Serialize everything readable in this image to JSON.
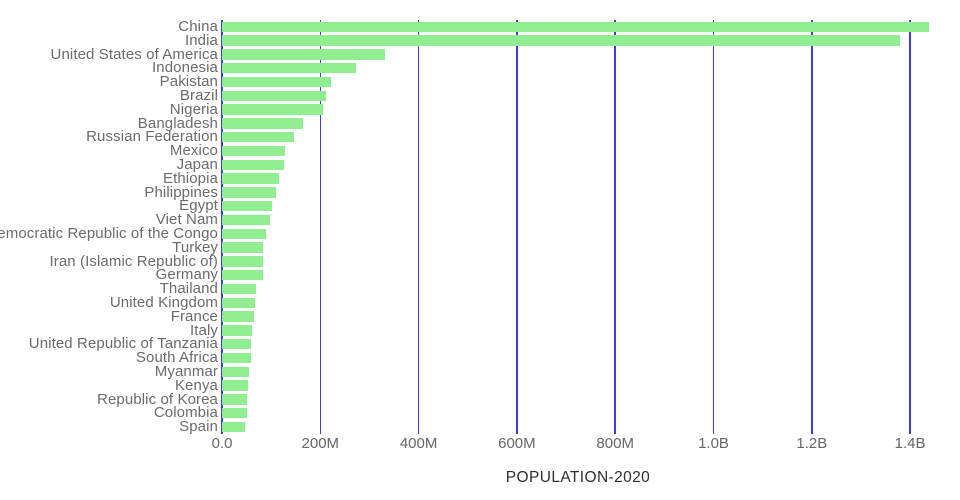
{
  "chart_data": {
    "type": "bar",
    "orientation": "horizontal",
    "xlabel": "POPULATION-2020",
    "categories": [
      "China",
      "India",
      "United States of America",
      "Indonesia",
      "Pakistan",
      "Brazil",
      "Nigeria",
      "Bangladesh",
      "Russian Federation",
      "Mexico",
      "Japan",
      "Ethiopia",
      "Philippines",
      "Egypt",
      "Viet Nam",
      "Democratic Republic of the Congo",
      "Turkey",
      "Iran (Islamic Republic of)",
      "Germany",
      "Thailand",
      "United Kingdom",
      "France",
      "Italy",
      "United Republic of Tanzania",
      "South Africa",
      "Myanmar",
      "Kenya",
      "Republic of Korea",
      "Colombia",
      "Spain"
    ],
    "values_millions": [
      1439.3,
      1380.0,
      331.0,
      273.5,
      220.9,
      212.6,
      206.1,
      164.7,
      145.9,
      128.9,
      126.5,
      115.0,
      109.6,
      102.3,
      97.3,
      89.6,
      84.3,
      84.0,
      83.8,
      69.8,
      67.9,
      65.3,
      60.5,
      59.7,
      59.3,
      54.4,
      53.8,
      51.3,
      50.9,
      46.8
    ],
    "x_ticks": [
      {
        "value": 0,
        "label": "0.0"
      },
      {
        "value": 200,
        "label": "200M"
      },
      {
        "value": 400,
        "label": "400M"
      },
      {
        "value": 600,
        "label": "600M"
      },
      {
        "value": 800,
        "label": "800M"
      },
      {
        "value": 1000,
        "label": "1.0B"
      },
      {
        "value": 1200,
        "label": "1.2B"
      },
      {
        "value": 1400,
        "label": "1.4B"
      }
    ],
    "xlim_millions": [
      0,
      1460
    ],
    "grid": true,
    "legend": false,
    "bar_color": "#90EE90",
    "gridline_color": "#3D3DE1",
    "label_color": "#6B6B6B",
    "tick_label_color": "#666666",
    "title_color": "#2E2E2E",
    "background_color": "#FFFFFF"
  }
}
